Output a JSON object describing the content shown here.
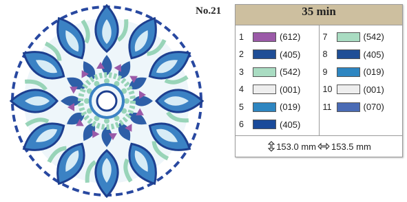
{
  "label": "No.21",
  "time": "35 min",
  "threads": [
    {
      "number": "1",
      "color": "#9b5aa8",
      "code": "(612)"
    },
    {
      "number": "2",
      "color": "#1f4e96",
      "code": "(405)"
    },
    {
      "number": "3",
      "color": "#a9dcc2",
      "code": "(542)"
    },
    {
      "number": "4",
      "color": "#eeeeee",
      "code": "(001)"
    },
    {
      "number": "5",
      "color": "#2e86c1",
      "code": "(019)"
    },
    {
      "number": "6",
      "color": "#1a4a9a",
      "code": "(405)"
    },
    {
      "number": "7",
      "color": "#a9dcc2",
      "code": "(542)"
    },
    {
      "number": "8",
      "color": "#1f4e96",
      "code": "(405)"
    },
    {
      "number": "9",
      "color": "#2e86c1",
      "code": "(019)"
    },
    {
      "number": "10",
      "color": "#eeeeee",
      "code": "(001)"
    },
    {
      "number": "11",
      "color": "#4a6bb5",
      "code": "(070)"
    }
  ],
  "size": {
    "height": "153.0 mm",
    "width": "153.5 mm"
  }
}
